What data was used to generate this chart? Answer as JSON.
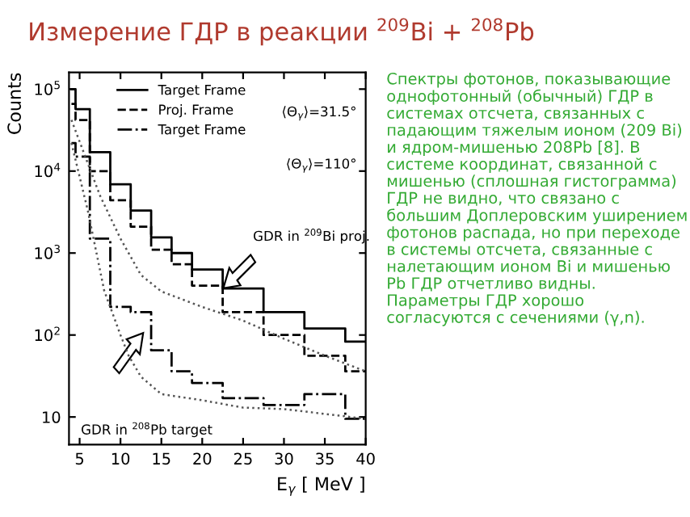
{
  "chart_data": {
    "type": "step",
    "title": "Измерение ГДР в реакции $^{209}$Bi + $^{208}$Pb",
    "xlabel": "E$_{γ}$ [ MeV ]",
    "ylabel": "Counts",
    "log": "y",
    "xlim": [
      3.7,
      40
    ],
    "ylim": [
      4.6,
      160000
    ],
    "xticks": [
      5,
      10,
      15,
      20,
      25,
      30,
      35,
      40
    ],
    "yticks": [
      {
        "value": 10,
        "label": "10"
      },
      {
        "value": 100,
        "label": "10$^{2}$"
      },
      {
        "value": 1000,
        "label": "10$^{3}$"
      },
      {
        "value": 10000,
        "label": "10$^{4}$"
      },
      {
        "value": 100000,
        "label": "10$^{5}$"
      }
    ],
    "x": [
      4,
      5,
      7.5,
      10,
      12.5,
      15,
      17.5,
      20,
      25,
      30,
      35,
      40
    ],
    "series": [
      {
        "name": "Target Frame",
        "color": "#000000",
        "line_style": "solid",
        "values": [
          100000,
          57000,
          17000,
          6900,
          3300,
          1550,
          1000,
          630,
          370,
          190,
          120,
          83
        ]
      },
      {
        "name": "Proj. Frame",
        "color": "#000000",
        "line_style": "dashed",
        "values": [
          66000,
          42000,
          10000,
          4400,
          2100,
          1100,
          730,
          400,
          190,
          100,
          56,
          36
        ]
      },
      {
        "name": "Target Frame",
        "color": "#000000",
        "line_style": "dashdot",
        "values": [
          22000,
          15000,
          1500,
          220,
          190,
          65,
          36,
          26,
          17,
          14,
          19,
          9.5
        ]
      },
      {
        "type": "line",
        "color": "#555555",
        "line_style": "dotted",
        "x": [
          4,
          7.5,
          10,
          12.5,
          15,
          20,
          25,
          30,
          35,
          40
        ],
        "values": [
          42000,
          5000,
          1500,
          540,
          340,
          220,
          150,
          90,
          56,
          36
        ]
      },
      {
        "type": "line",
        "color": "#555555",
        "line_style": "dotted",
        "x": [
          4,
          6,
          8,
          10,
          11,
          12.5,
          15,
          20,
          25,
          30,
          40
        ],
        "values": [
          22000,
          3300,
          350,
          100,
          56,
          31,
          19,
          16,
          13,
          12.5,
          9.5
        ]
      }
    ],
    "legend": "top",
    "annotations": [
      "⟨Θ$_{γ}$⟩=31.5°",
      "⟨Θ$_{γ}$⟩=110°",
      "GDR in $^{209}$Bi proj.",
      "GDR in $^{208}$Pb target",
      "Спектры фотонов, показывающие однофотонный (обычный) ГДР в системах отсчета, связанных с падающим тяжелым ионом (209 Bi) и ядром-мишенью 208Pb [8]. В системе координат, связанной с мишенью (сплошная гистограмма) ГДР не видно, что связано с большим Доплеровским уширением фотонов распада, но при переходе в системы отсчета, связанные с налетающим ионом Bi и мишенью Pb ГДР отчетливо видны.  Параметры ГДР хорошо согласуются с сечениями (γ,n)."
    ]
  }
}
